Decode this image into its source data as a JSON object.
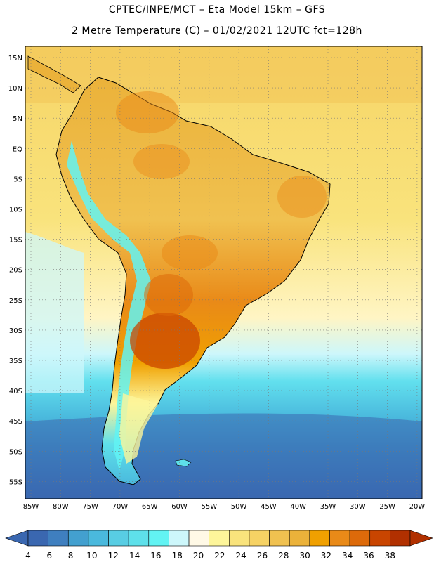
{
  "header": {
    "line1": "CPTEC/INPE/MCT –  Eta Model 15km – GFS",
    "line2": "2 Metre Temperature (C) – 01/02/2021 12UTC fct=128h"
  },
  "axes": {
    "lat_labels": [
      "15N",
      "10N",
      "5N",
      "EQ",
      "5S",
      "10S",
      "15S",
      "20S",
      "25S",
      "30S",
      "35S",
      "40S",
      "45S",
      "50S",
      "55S"
    ],
    "lon_labels": [
      "85W",
      "80W",
      "75W",
      "70W",
      "65W",
      "60W",
      "55W",
      "50W",
      "45W",
      "40W",
      "35W",
      "30W",
      "25W",
      "20W"
    ]
  },
  "colorbar": {
    "labels": [
      "4",
      "6",
      "8",
      "10",
      "12",
      "14",
      "16",
      "18",
      "20",
      "22",
      "24",
      "26",
      "28",
      "30",
      "32",
      "34",
      "36",
      "38"
    ],
    "colors": [
      "#3a67b0",
      "#3f7fbf",
      "#43a0cf",
      "#4ab9dd",
      "#58cde3",
      "#5ee0ea",
      "#62f3f3",
      "#cdf7fb",
      "#fff9e6",
      "#fdf59a",
      "#f9e37c",
      "#f6d264",
      "#f0c150",
      "#ebb23a",
      "#f0a000",
      "#e98a18",
      "#dd6a0a",
      "#c94500",
      "#b13000"
    ],
    "left_arrow_color": "#3a67b0",
    "right_arrow_color": "#b13000"
  },
  "colors": {
    "ocean_warm": "#f7d36c",
    "ocean_mid": "#fdf59a",
    "ocean_cool": "#58cde3",
    "ocean_cold": "#3f7fbf",
    "land_warm": "#f0c150",
    "land_hot": "#dd6a0a",
    "andes": "#62f3f3",
    "gridline": "#777777",
    "coast": "#000000"
  }
}
